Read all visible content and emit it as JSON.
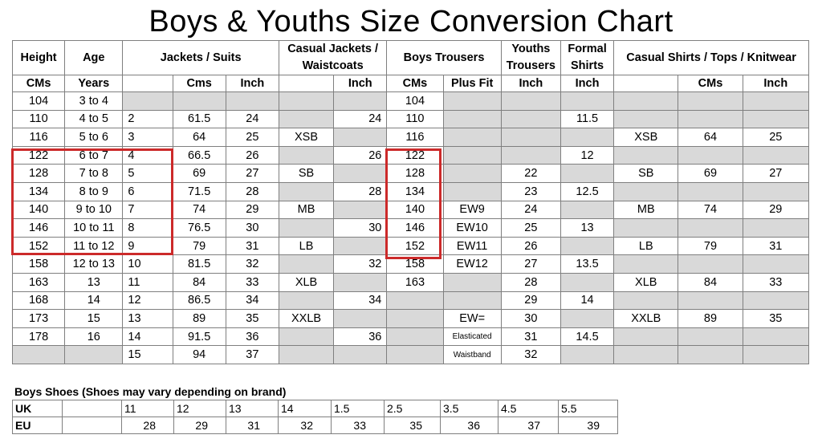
{
  "title": "Boys & Youths Size Conversion Chart",
  "header": {
    "height": "Height",
    "age": "Age",
    "jackets": "Jackets / Suits",
    "casual_jackets": "Casual Jackets / Waistcoats",
    "boys_trousers": "Boys Trousers",
    "youths_trousers": "Youths Trousers",
    "formal_shirts": "Formal Shirts",
    "casual_shirts": "Casual Shirts / Tops / Knitwear"
  },
  "subheader": {
    "height_unit": "CMs",
    "age_unit": "Years",
    "jackets_cms": "Cms",
    "jackets_inch": "Inch",
    "casual_jackets_inch": "Inch",
    "trousers_cms": "CMs",
    "trousers_plus": "Plus Fit",
    "youths_inch": "Inch",
    "formal_inch": "Inch",
    "casual_cms": "CMs",
    "casual_inch": "Inch"
  },
  "rows": [
    [
      "104",
      "3 to 4",
      "",
      "",
      "",
      "",
      "",
      "104",
      "",
      "",
      "",
      "",
      "",
      ""
    ],
    [
      "110",
      "4 to 5",
      "2",
      "61.5",
      "24",
      "",
      "24",
      "110",
      "",
      "",
      "11.5",
      "",
      "",
      ""
    ],
    [
      "116",
      "5 to 6",
      "3",
      "64",
      "25",
      "XSB",
      "",
      "116",
      "",
      "",
      "",
      "XSB",
      "64",
      "25"
    ],
    [
      "122",
      "6 to 7",
      "4",
      "66.5",
      "26",
      "",
      "26",
      "122",
      "",
      "",
      "12",
      "",
      "",
      ""
    ],
    [
      "128",
      "7 to 8",
      "5",
      "69",
      "27",
      "SB",
      "",
      "128",
      "",
      "22",
      "",
      "SB",
      "69",
      "27"
    ],
    [
      "134",
      "8 to 9",
      "6",
      "71.5",
      "28",
      "",
      "28",
      "134",
      "",
      "23",
      "12.5",
      "",
      "",
      ""
    ],
    [
      "140",
      "9 to 10",
      "7",
      "74",
      "29",
      "MB",
      "",
      "140",
      "EW9",
      "24",
      "",
      "MB",
      "74",
      "29"
    ],
    [
      "146",
      "10 to 11",
      "8",
      "76.5",
      "30",
      "",
      "30",
      "146",
      "EW10",
      "25",
      "13",
      "",
      "",
      ""
    ],
    [
      "152",
      "11 to 12",
      "9",
      "79",
      "31",
      "LB",
      "",
      "152",
      "EW11",
      "26",
      "",
      "LB",
      "79",
      "31"
    ],
    [
      "158",
      "12 to 13",
      "10",
      "81.5",
      "32",
      "",
      "32",
      "158",
      "EW12",
      "27",
      "13.5",
      "",
      "",
      ""
    ],
    [
      "163",
      "13",
      "11",
      "84",
      "33",
      "XLB",
      "",
      "163",
      "",
      "28",
      "",
      "XLB",
      "84",
      "33"
    ],
    [
      "168",
      "14",
      "12",
      "86.5",
      "34",
      "",
      "34",
      "",
      "",
      "29",
      "14",
      "",
      "",
      ""
    ],
    [
      "173",
      "15",
      "13",
      "89",
      "35",
      "XXLB",
      "",
      "",
      "EW=",
      "30",
      "",
      "XXLB",
      "89",
      "35"
    ],
    [
      "178",
      "16",
      "14",
      "91.5",
      "36",
      "",
      "36",
      "",
      "Elasticated",
      "31",
      "14.5",
      "",
      "",
      ""
    ],
    [
      "",
      "",
      "15",
      "94",
      "37",
      "",
      "",
      "",
      "Waistband",
      "32",
      "",
      "",
      "",
      ""
    ]
  ],
  "shoes": {
    "title": "Boys Shoes  (Shoes may vary depending on brand)",
    "uk_label": "UK",
    "eu_label": "EU",
    "uk": [
      "11",
      "12",
      "13",
      "14",
      "1.5",
      "2.5",
      "3.5",
      "4.5",
      "5.5"
    ],
    "eu": [
      "28",
      "29",
      "31",
      "32",
      "33",
      "35",
      "36",
      "37",
      "39"
    ]
  },
  "colors": {
    "highlight_border": "#cc2a2a",
    "shaded_cell": "#d9d9d9",
    "grid": "#7f7f7f"
  }
}
